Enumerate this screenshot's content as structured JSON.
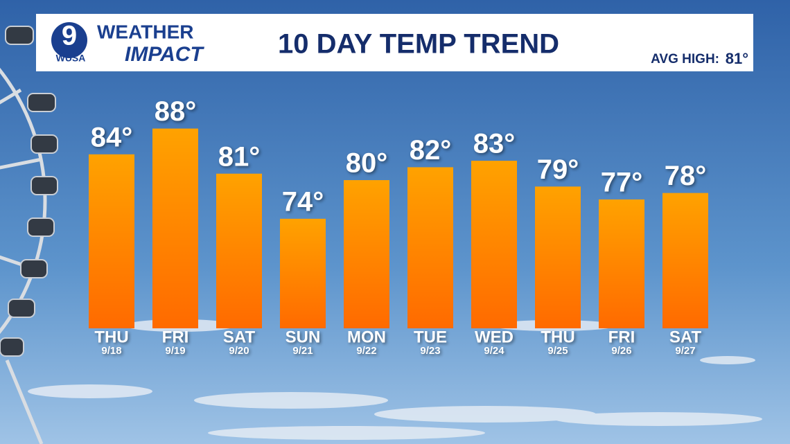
{
  "header": {
    "logo_number": "9",
    "logo_text": "WUSA",
    "brand_top": "WEATHER",
    "brand_bottom": "IMPACT",
    "avg_high_label": "AVG HIGH:",
    "avg_high_value": "81°"
  },
  "chart_data": {
    "type": "bar",
    "title": "10 DAY TEMP TREND",
    "categories": [
      "THU",
      "FRI",
      "SAT",
      "SUN",
      "MON",
      "TUE",
      "WED",
      "THU",
      "FRI",
      "SAT"
    ],
    "dates": [
      "9/18",
      "9/19",
      "9/20",
      "9/21",
      "9/22",
      "9/23",
      "9/24",
      "9/25",
      "9/26",
      "9/27"
    ],
    "values": [
      84,
      88,
      81,
      74,
      80,
      82,
      83,
      79,
      77,
      78
    ],
    "value_labels": [
      "84°",
      "88°",
      "81°",
      "74°",
      "80°",
      "82°",
      "83°",
      "79°",
      "77°",
      "78°"
    ],
    "color": "#ff8a00",
    "ylim": [
      57,
      90
    ]
  }
}
